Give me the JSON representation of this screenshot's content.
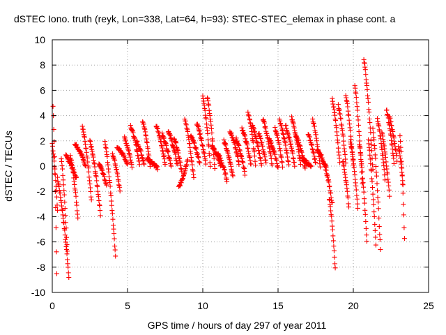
{
  "chart_data": {
    "type": "scatter",
    "title": "dSTEC Iono. truth (reyk, Lon=338, Lat=64, h=93): STEC-STEC_elemax in phase cont. a",
    "xlabel": "GPS time / hours of day 297 of year 2011",
    "ylabel": "dSTEC  / TECUs",
    "xlim": [
      0,
      25
    ],
    "ylim": [
      -10,
      10
    ],
    "xticks": [
      0,
      5,
      10,
      15,
      20,
      25
    ],
    "yticks": [
      -10,
      -8,
      -6,
      -4,
      -2,
      0,
      2,
      4,
      6,
      8,
      10
    ],
    "grid": true,
    "marker": "plus",
    "marker_color": "#ff0000",
    "tracks": [
      {
        "t0": 0.0,
        "t1": 0.35,
        "y0": 1.8,
        "y1": -3.5,
        "dip": 0
      },
      {
        "t0": 0.05,
        "t1": 0.3,
        "y0": 4.8,
        "y1": -8.5,
        "dip": 0
      },
      {
        "t0": 0.35,
        "t1": 1.1,
        "y0": -1.0,
        "y1": -8.7,
        "dip": 0
      },
      {
        "t0": 0.6,
        "t1": 1.0,
        "y0": 0.6,
        "y1": -6.8,
        "dip": 0
      },
      {
        "t0": 0.9,
        "t1": 1.6,
        "y0": 0.8,
        "y1": -1.0,
        "dip": 0
      },
      {
        "t0": 1.2,
        "t1": 1.7,
        "y0": 0.9,
        "y1": -4.1,
        "dip": 0
      },
      {
        "t0": 1.5,
        "t1": 2.2,
        "y0": 1.8,
        "y1": 0.1,
        "dip": 0
      },
      {
        "t0": 2.0,
        "t1": 2.6,
        "y0": 3.2,
        "y1": -2.8,
        "dip": 0
      },
      {
        "t0": 2.5,
        "t1": 3.2,
        "y0": 2.0,
        "y1": -3.8,
        "dip": 0
      },
      {
        "t0": 3.1,
        "t1": 3.6,
        "y0": 0.2,
        "y1": -1.5,
        "dip": 0
      },
      {
        "t0": 3.5,
        "t1": 4.2,
        "y0": 2.0,
        "y1": -7.2,
        "dip": 0
      },
      {
        "t0": 4.0,
        "t1": 4.5,
        "y0": 1.0,
        "y1": -2.0,
        "dip": 0
      },
      {
        "t0": 4.3,
        "t1": 5.0,
        "y0": 1.5,
        "y1": 0.2,
        "dip": 0
      },
      {
        "t0": 4.8,
        "t1": 5.3,
        "y0": 2.2,
        "y1": 0.0,
        "dip": 0
      },
      {
        "t0": 5.2,
        "t1": 5.8,
        "y0": 3.2,
        "y1": 0.1,
        "dip": 0
      },
      {
        "t0": 5.6,
        "t1": 6.1,
        "y0": 2.0,
        "y1": 0.2,
        "dip": 0
      },
      {
        "t0": 6.0,
        "t1": 6.5,
        "y0": 3.6,
        "y1": 0.0,
        "dip": 0
      },
      {
        "t0": 6.3,
        "t1": 7.0,
        "y0": 0.6,
        "y1": -0.2,
        "dip": 0
      },
      {
        "t0": 6.9,
        "t1": 7.5,
        "y0": 3.2,
        "y1": 0.2,
        "dip": 0
      },
      {
        "t0": 7.3,
        "t1": 7.9,
        "y0": 2.5,
        "y1": 0.0,
        "dip": 0
      },
      {
        "t0": 7.7,
        "t1": 8.3,
        "y0": 2.8,
        "y1": 0.1,
        "dip": 0
      },
      {
        "t0": 8.1,
        "t1": 8.6,
        "y0": 2.2,
        "y1": -0.5,
        "dip": 0
      },
      {
        "t0": 8.4,
        "t1": 9.0,
        "y0": -1.7,
        "y1": 0.6,
        "dip": 0
      },
      {
        "t0": 8.8,
        "t1": 9.4,
        "y0": 3.8,
        "y1": -1.0,
        "dip": 0
      },
      {
        "t0": 9.2,
        "t1": 9.8,
        "y0": 2.4,
        "y1": 0.2,
        "dip": 0
      },
      {
        "t0": 9.6,
        "t1": 10.2,
        "y0": 3.4,
        "y1": 0.2,
        "dip": 0
      },
      {
        "t0": 10.0,
        "t1": 10.5,
        "y0": 5.6,
        "y1": 0.0,
        "dip": 0
      },
      {
        "t0": 10.3,
        "t1": 10.8,
        "y0": 5.5,
        "y1": -0.3,
        "dip": 0
      },
      {
        "t0": 10.6,
        "t1": 11.2,
        "y0": 1.6,
        "y1": 0.0,
        "dip": 0
      },
      {
        "t0": 11.0,
        "t1": 11.6,
        "y0": 1.0,
        "y1": -1.1,
        "dip": 0
      },
      {
        "t0": 11.4,
        "t1": 12.0,
        "y0": 2.0,
        "y1": -0.8,
        "dip": 0
      },
      {
        "t0": 11.8,
        "t1": 12.4,
        "y0": 2.8,
        "y1": 0.2,
        "dip": 0
      },
      {
        "t0": 12.2,
        "t1": 12.8,
        "y0": 2.2,
        "y1": -0.6,
        "dip": 0
      },
      {
        "t0": 12.6,
        "t1": 13.2,
        "y0": 3.0,
        "y1": 0.1,
        "dip": 0
      },
      {
        "t0": 13.0,
        "t1": 13.5,
        "y0": 4.3,
        "y1": 0.2,
        "dip": 0
      },
      {
        "t0": 13.3,
        "t1": 13.9,
        "y0": 3.2,
        "y1": 0.0,
        "dip": 0
      },
      {
        "t0": 13.7,
        "t1": 14.2,
        "y0": 2.6,
        "y1": 0.2,
        "dip": 0
      },
      {
        "t0": 14.0,
        "t1": 14.6,
        "y0": 3.7,
        "y1": 0.1,
        "dip": 0
      },
      {
        "t0": 14.4,
        "t1": 15.0,
        "y0": 2.2,
        "y1": -0.2,
        "dip": 0
      },
      {
        "t0": 14.8,
        "t1": 15.3,
        "y0": 3.0,
        "y1": 0.0,
        "dip": 0
      },
      {
        "t0": 15.1,
        "t1": 15.7,
        "y0": 3.6,
        "y1": 0.2,
        "dip": 0
      },
      {
        "t0": 15.5,
        "t1": 16.1,
        "y0": 3.2,
        "y1": 0.0,
        "dip": 0
      },
      {
        "t0": 15.9,
        "t1": 16.5,
        "y0": 3.8,
        "y1": 0.1,
        "dip": 0
      },
      {
        "t0": 16.2,
        "t1": 16.8,
        "y0": 2.4,
        "y1": -0.2,
        "dip": 0
      },
      {
        "t0": 16.6,
        "t1": 17.2,
        "y0": 0.6,
        "y1": -0.1,
        "dip": 0
      },
      {
        "t0": 17.0,
        "t1": 17.5,
        "y0": 2.5,
        "y1": 0.2,
        "dip": 0
      },
      {
        "t0": 17.3,
        "t1": 17.8,
        "y0": 3.7,
        "y1": 0.0,
        "dip": 0
      },
      {
        "t0": 17.6,
        "t1": 18.2,
        "y0": 1.3,
        "y1": -0.2,
        "dip": 0
      },
      {
        "t0": 18.1,
        "t1": 18.6,
        "y0": 0.0,
        "y1": -3.0,
        "dip": 0
      },
      {
        "t0": 18.4,
        "t1": 18.8,
        "y0": -2.5,
        "y1": -8.1,
        "dip": 0
      },
      {
        "t0": 18.6,
        "t1": 19.1,
        "y0": 5.3,
        "y1": 0.2,
        "dip": 0
      },
      {
        "t0": 19.0,
        "t1": 19.5,
        "y0": 4.8,
        "y1": 0.3,
        "dip": 0
      },
      {
        "t0": 19.3,
        "t1": 19.7,
        "y0": 0.4,
        "y1": -3.2,
        "dip": 0
      },
      {
        "t0": 19.5,
        "t1": 20.0,
        "y0": 5.6,
        "y1": 0.0,
        "dip": 0
      },
      {
        "t0": 19.8,
        "t1": 20.3,
        "y0": 2.0,
        "y1": -3.3,
        "dip": 0
      },
      {
        "t0": 20.1,
        "t1": 20.6,
        "y0": 6.4,
        "y1": -1.5,
        "dip": 0
      },
      {
        "t0": 20.4,
        "t1": 20.9,
        "y0": 1.8,
        "y1": -5.9,
        "dip": 0
      },
      {
        "t0": 20.7,
        "t1": 21.3,
        "y0": 8.5,
        "y1": -0.3,
        "dip": 0
      },
      {
        "t0": 21.0,
        "t1": 21.5,
        "y0": 2.0,
        "y1": -6.2,
        "dip": 0
      },
      {
        "t0": 21.3,
        "t1": 21.8,
        "y0": 3.0,
        "y1": -6.6,
        "dip": 0
      },
      {
        "t0": 21.6,
        "t1": 22.1,
        "y0": 3.7,
        "y1": -1.0,
        "dip": 0
      },
      {
        "t0": 21.9,
        "t1": 22.4,
        "y0": 2.6,
        "y1": -2.3,
        "dip": 0
      },
      {
        "t0": 22.2,
        "t1": 22.7,
        "y0": 4.5,
        "y1": 0.2,
        "dip": 0
      },
      {
        "t0": 22.4,
        "t1": 22.9,
        "y0": 3.9,
        "y1": 0.5,
        "dip": 0
      },
      {
        "t0": 23.0,
        "t1": 23.3,
        "y0": 1.6,
        "y1": -1.5,
        "dip": 0
      },
      {
        "t0": 23.1,
        "t1": 23.4,
        "y0": 2.5,
        "y1": -5.7,
        "dip": 0
      }
    ]
  }
}
